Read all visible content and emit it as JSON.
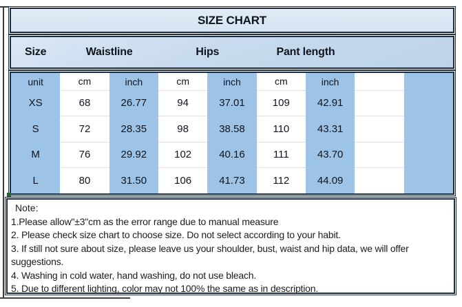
{
  "title": "SIZE CHART",
  "header": {
    "groups": [
      {
        "label": "Size",
        "span": 1
      },
      {
        "label": "Waistline",
        "span": 2
      },
      {
        "label": "Hips",
        "span": 2
      },
      {
        "label": "Pant length",
        "span": 2
      },
      {
        "label": "",
        "span": 2
      }
    ]
  },
  "table": {
    "unit_row": [
      "unit",
      "cm",
      "inch",
      "cm",
      "inch",
      "cm",
      "inch",
      "",
      ""
    ],
    "column_keys": [
      "waistline-cm",
      "waistline-inch",
      "hips-cm",
      "hips-inch",
      "pant-length-cm",
      "pant-length-inch"
    ],
    "rows": [
      {
        "size": "XS",
        "values": [
          "68",
          "26.77",
          "94",
          "37.01",
          "109",
          "42.91"
        ]
      },
      {
        "size": "S",
        "values": [
          "72",
          "28.35",
          "98",
          "38.58",
          "110",
          "43.31"
        ]
      },
      {
        "size": "M",
        "values": [
          "76",
          "29.92",
          "102",
          "40.16",
          "111",
          "43.70"
        ]
      },
      {
        "size": "L",
        "values": [
          "80",
          "31.50",
          "106",
          "41.73",
          "112",
          "44.09"
        ]
      }
    ]
  },
  "notes": {
    "heading": "Note:",
    "items": [
      "1.Please allow\"±3\"cm as the error range due to manual measure",
      "2. Please check size chart to choose size. Do not select according to your habit.",
      "3. If still not sure about size, please leave us your shoulder, bust, waist and hip data, we will offer suggestions.",
      "4. Washing in cold water, hand washing, do not use bleach.",
      "5. Due to different lighting, color may not 100% the same as in description."
    ]
  },
  "colors": {
    "column_blue": "#9dc3e6",
    "header_bg_bottom": "#bcd3ea",
    "title_bar_bg": "#dce8f5",
    "border_dark": "#1c2b3e",
    "row_divider": "#e0e0e0",
    "text_dark": "#10141c",
    "corner_marker_green": "#2c642c"
  }
}
